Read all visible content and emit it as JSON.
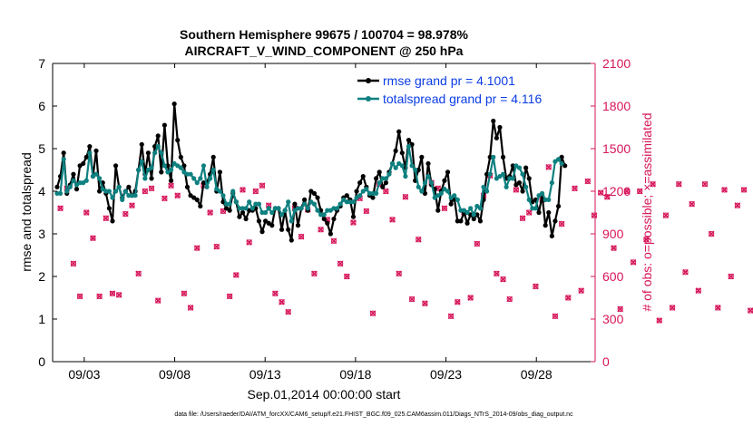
{
  "chart_data": {
    "type": "line",
    "title": "Southern Hemisphere 99675 / 100704 = 98.978%",
    "subtitle": "AIRCRAFT_V_WIND_COMPONENT @ 250 hPa",
    "xlabel": "Sep.01,2014 00:00:00 start",
    "ylabel": "rmse and totalspread",
    "ylabel_right": "# of obs: o=possible; ×=assimilated",
    "footer": "data file: /Users/raeder/DAI/ATM_forcXX/CAM6_setup/f.e21.FHIST_BGC.f09_025.CAM6assim.011/Diags_NTrS_2014-09/obs_diag_output.nc",
    "x_tick_labels": [
      "09/03",
      "09/08",
      "09/13",
      "09/18",
      "09/23",
      "09/28"
    ],
    "x_ticks": [
      3,
      8,
      13,
      18,
      23,
      28
    ],
    "xlim": [
      1.25,
      31.25
    ],
    "ylim": [
      0,
      7
    ],
    "y_ticks": [
      "0",
      "1",
      "2",
      "3",
      "4",
      "5",
      "6",
      "7"
    ],
    "y2lim": [
      0,
      2100
    ],
    "y2_ticks": [
      "0",
      "300",
      "600",
      "900",
      "1200",
      "1500",
      "1800",
      "2100"
    ],
    "colors": {
      "rmse": "#000000",
      "spread": "#0f8080",
      "obs": "#d6155a",
      "legend_text": "#0b3de6"
    },
    "series": [
      {
        "name": "rmse grand pr = 4.1001",
        "color": "#000000",
        "values": [
          4.1,
          4.35,
          4.9,
          3.95,
          4.15,
          4.4,
          4.05,
          4.6,
          4.65,
          4.8,
          5.05,
          4.35,
          4.95,
          4.0,
          4.2,
          3.95,
          3.6,
          3.3,
          4.6,
          4.1,
          3.85,
          4.0,
          4.1,
          3.9,
          4.0,
          4.5,
          5.1,
          4.4,
          4.9,
          4.3,
          5.05,
          5.3,
          4.45,
          5.55,
          4.6,
          4.25,
          6.05,
          5.2,
          4.8,
          4.6,
          4.1,
          3.9,
          3.85,
          3.8,
          3.65,
          4.2,
          4.2,
          4.4,
          4.8,
          4.0,
          4.45,
          3.75,
          3.6,
          3.55,
          3.95,
          3.75,
          3.4,
          3.5,
          3.35,
          3.55,
          3.55,
          3.6,
          3.3,
          3.05,
          3.3,
          3.25,
          3.2,
          3.6,
          3.6,
          3.1,
          3.55,
          3.1,
          2.85,
          3.7,
          3.2,
          3.6,
          3.8,
          3.55,
          4.0,
          3.95,
          3.85,
          3.55,
          3.35,
          3.25,
          3.0,
          3.35,
          3.55,
          3.65,
          3.85,
          3.9,
          3.8,
          3.4,
          4.0,
          4.2,
          4.35,
          4.1,
          3.9,
          3.85,
          4.3,
          4.45,
          4.1,
          4.2,
          4.45,
          4.65,
          4.95,
          5.4,
          4.9,
          4.55,
          5.2,
          5.1,
          4.25,
          4.5,
          4.8,
          3.95,
          4.65,
          4.15,
          4.05,
          3.55,
          4.0,
          4.25,
          4.45,
          3.7,
          3.85,
          3.3,
          3.3,
          3.5,
          3.25,
          3.45,
          3.35,
          3.45,
          3.3,
          3.8,
          4.4,
          4.8,
          5.65,
          5.25,
          5.5,
          4.8,
          4.3,
          4.35,
          4.6,
          4.15,
          4.2,
          4.0,
          4.55,
          4.3,
          3.75,
          3.8,
          3.5,
          3.9,
          3.2,
          3.5,
          2.95,
          3.3,
          3.65,
          4.8,
          4.6
        ]
      },
      {
        "name": "totalspread grand pr = 4.116",
        "color": "#0f8080",
        "values": [
          3.95,
          3.95,
          4.75,
          4.0,
          4.1,
          4.25,
          4.15,
          4.2,
          4.2,
          4.25,
          4.9,
          4.35,
          4.4,
          4.3,
          4.05,
          4.0,
          4.0,
          3.85,
          4.0,
          4.1,
          3.8,
          4.0,
          3.9,
          3.9,
          3.9,
          4.5,
          4.7,
          4.3,
          4.5,
          4.55,
          4.9,
          5.05,
          4.9,
          4.6,
          4.45,
          4.5,
          4.65,
          4.6,
          4.55,
          4.45,
          4.4,
          4.4,
          4.3,
          4.2,
          4.3,
          4.6,
          4.1,
          4.3,
          4.5,
          4.05,
          4.0,
          3.9,
          3.7,
          3.7,
          4.0,
          3.75,
          3.6,
          3.6,
          3.6,
          3.75,
          3.6,
          3.7,
          3.7,
          3.5,
          3.5,
          3.6,
          3.5,
          3.6,
          3.6,
          3.45,
          3.55,
          3.75,
          3.3,
          3.55,
          3.6,
          3.6,
          3.7,
          3.6,
          3.75,
          3.7,
          3.55,
          3.45,
          3.45,
          3.55,
          3.55,
          3.6,
          3.6,
          3.7,
          3.8,
          3.75,
          3.75,
          3.75,
          3.85,
          3.9,
          4.0,
          4.05,
          3.95,
          3.95,
          3.95,
          4.2,
          4.3,
          4.3,
          4.4,
          4.65,
          4.55,
          4.65,
          4.6,
          4.35,
          5.05,
          4.6,
          4.5,
          4.1,
          4.0,
          4.2,
          4.35,
          4.2,
          3.85,
          3.9,
          3.95,
          4.05,
          4.0,
          3.85,
          3.9,
          3.8,
          3.55,
          3.55,
          3.5,
          3.6,
          3.45,
          3.65,
          3.6,
          4.1,
          4.0,
          4.4,
          4.8,
          4.3,
          4.35,
          4.4,
          4.1,
          4.3,
          4.3,
          4.6,
          4.55,
          4.4,
          4.1,
          3.8,
          3.6,
          3.6,
          3.9,
          3.95,
          3.8,
          3.8,
          4.2,
          4.7,
          4.75,
          4.65
        ]
      }
    ],
    "obs_possible": [
      1080,
      1220,
      690,
      460,
      1050,
      870,
      460,
      1010,
      480,
      470,
      1040,
      1100,
      620,
      1200,
      1220,
      430,
      1150,
      1240,
      1170,
      480,
      380,
      800,
      1240,
      1050,
      810,
      1060,
      460,
      610,
      1210,
      840,
      1200,
      1240,
      1100,
      480,
      420,
      350,
      1080,
      880,
      1070,
      620,
      930,
      1000,
      850,
      690,
      600,
      980,
      1150,
      1060,
      340,
      1250,
      1200,
      1000,
      620,
      1160,
      440,
      860,
      410,
      1260,
      1220,
      1080,
      320,
      420,
      1050,
      450,
      830,
      1170,
      1310,
      620,
      580,
      440,
      1210,
      1010,
      1050,
      530,
      1140,
      1370,
      320,
      970,
      450,
      1220,
      500,
      1270,
      1030,
      1190,
      1160,
      800,
      370,
      1200,
      700,
      1200,
      860,
      1250,
      290,
      1030,
      380,
      1250,
      630,
      1110,
      500,
      1250,
      900,
      380,
      1210,
      600,
      1100,
      1210,
      360,
      1190,
      1310,
      1080,
      840,
      670,
      910,
      1300,
      820,
      1170,
      1210,
      1260,
      600,
      1120,
      1220,
      1190,
      1220,
      450,
      1190,
      1310,
      1120,
      1020,
      870,
      550,
      1090,
      1300,
      1070,
      1380,
      1170,
      580,
      900,
      1300,
      1220,
      760,
      1220,
      460,
      1250,
      1200,
      660,
      1070,
      300,
      960,
      1200,
      1230,
      0
    ]
  }
}
